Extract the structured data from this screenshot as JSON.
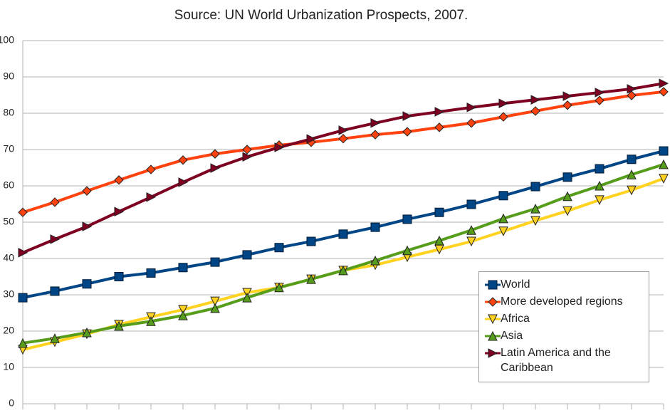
{
  "chart_data": {
    "type": "line",
    "title": "Source: UN World Urbanization Prospects, 2007.",
    "categories": [
      null,
      null,
      null,
      null,
      null,
      null,
      null,
      null,
      null,
      null,
      null,
      null,
      null,
      null,
      null,
      null,
      null,
      null,
      null,
      null,
      null
    ],
    "series": [
      {
        "name": "World",
        "color": "#004586",
        "marker": "square",
        "values": [
          29.2,
          31,
          33,
          35,
          36,
          37.5,
          39,
          41,
          43,
          44.7,
          46.7,
          48.6,
          50.8,
          52.7,
          54.9,
          57.3,
          59.8,
          62.4,
          64.7,
          67.3,
          69.6
        ]
      },
      {
        "name": "More developed regions",
        "color": "#ff420e",
        "marker": "diamond",
        "values": [
          52.7,
          55.5,
          58.6,
          61.6,
          64.5,
          67.1,
          68.8,
          70,
          71.2,
          72,
          73,
          74.1,
          74.9,
          76.1,
          77.3,
          79,
          80.6,
          82.2,
          83.5,
          84.9,
          85.9
        ]
      },
      {
        "name": "Africa",
        "color": "#ffd320",
        "marker": "triangle-down",
        "values": [
          14.9,
          17,
          19.2,
          21.8,
          23.9,
          25.9,
          28.2,
          30.6,
          32,
          34.3,
          36.7,
          38.2,
          40.4,
          42.5,
          44.7,
          47.5,
          50.4,
          53.1,
          56.1,
          58.8,
          62
        ]
      },
      {
        "name": "Asia",
        "color": "#579d1c",
        "marker": "triangle-up",
        "values": [
          16.7,
          18,
          19.6,
          21.4,
          22.7,
          24.3,
          26.3,
          29.2,
          32,
          34.3,
          36.7,
          39.4,
          42.2,
          44.9,
          47.8,
          51,
          53.7,
          57.1,
          60,
          63.1,
          65.9
        ]
      },
      {
        "name": "Latin America and the Caribbean",
        "color": "#7e0021",
        "marker": "triangle-right",
        "values": [
          41.6,
          45.3,
          48.8,
          52.9,
          56.9,
          61,
          64.9,
          68,
          70.6,
          72.9,
          75.3,
          77.3,
          79.2,
          80.4,
          81.6,
          82.7,
          83.7,
          84.7,
          85.7,
          86.7,
          88.2
        ]
      }
    ],
    "ylim": [
      0,
      100
    ],
    "yticks": [
      0,
      10,
      20,
      30,
      40,
      50,
      60,
      70,
      80,
      90,
      100
    ],
    "grid": true,
    "legend": "lower-right"
  }
}
